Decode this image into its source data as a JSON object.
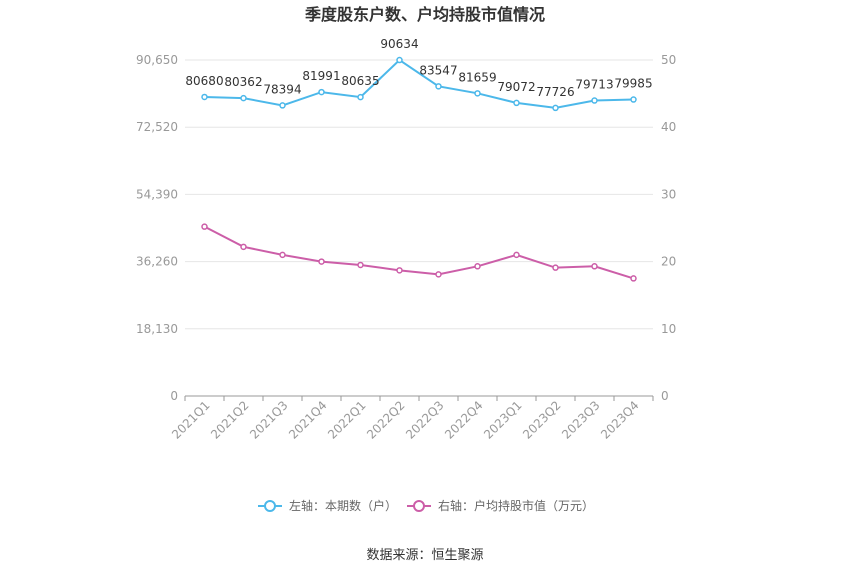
{
  "chart_data": {
    "type": "line",
    "title": "季度股东户数、户均持股市值情况",
    "categories": [
      "2021Q1",
      "2021Q2",
      "2021Q3",
      "2021Q4",
      "2022Q1",
      "2022Q2",
      "2022Q3",
      "2022Q4",
      "2023Q1",
      "2023Q2",
      "2023Q3",
      "2023Q4"
    ],
    "left_axis": {
      "ticks": [
        "0",
        "18,130",
        "36,260",
        "54,390",
        "72,520",
        "90,650"
      ],
      "range": [
        0,
        90650
      ]
    },
    "right_axis": {
      "ticks": [
        "0",
        "10",
        "20",
        "30",
        "40",
        "50"
      ],
      "range": [
        0,
        50
      ]
    },
    "series": [
      {
        "name": "左轴：本期数（户）",
        "axis": "left",
        "color": "#4cb8ea",
        "values": [
          80680,
          80362,
          78394,
          81991,
          80635,
          90634,
          83547,
          81659,
          79072,
          77726,
          79713,
          79985
        ],
        "labels": [
          "80680",
          "80362",
          "78394",
          "81991",
          "80635",
          "90634",
          "83547",
          "81659",
          "79072",
          "77726",
          "79713",
          "79985"
        ]
      },
      {
        "name": "右轴：户均持股市值（万元）",
        "axis": "right",
        "color": "#cc5ea8",
        "values": [
          25.2,
          22.2,
          21.0,
          20.0,
          19.5,
          18.7,
          18.1,
          19.3,
          21.0,
          19.1,
          19.3,
          17.5
        ]
      }
    ],
    "legend_position": "bottom",
    "grid": true
  },
  "source": "数据来源：恒生聚源"
}
